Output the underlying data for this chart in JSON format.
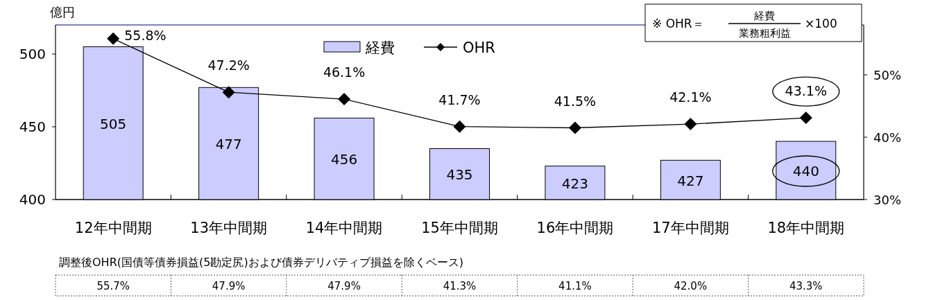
{
  "chart_data": {
    "type": "bar",
    "ylabel": "億円",
    "categories": [
      "12年中間期",
      "13年中間期",
      "14年中間期",
      "15年中間期",
      "16年中間期",
      "17年中間期",
      "18年中間期"
    ],
    "series": [
      {
        "name": "経費",
        "color": "#ccccff",
        "values": [
          505,
          477,
          456,
          435,
          423,
          427,
          440
        ]
      },
      {
        "name": "OHR",
        "type": "line",
        "axis": "y2",
        "color": "#000000",
        "marker": "diamond",
        "value_labels": [
          "55.8%",
          "47.2%",
          "46.1%",
          "41.7%",
          "41.5%",
          "42.1%",
          "43.1%"
        ],
        "values": [
          55.8,
          47.2,
          46.1,
          41.7,
          41.5,
          42.1,
          43.1
        ]
      }
    ],
    "ylim": [
      400,
      520
    ],
    "yticks": [
      400,
      450,
      500
    ],
    "y2lim": [
      30,
      58
    ],
    "y2ticks": [
      {
        "value": 30,
        "label": "30%"
      },
      {
        "value": 40,
        "label": "40%"
      },
      {
        "value": 50,
        "label": "50%"
      }
    ],
    "data_labels": true,
    "grid": false,
    "legend": "top",
    "annotations": [
      "※ OHR＝",
      "経費",
      "業務粗利益",
      "×100",
      "調整後OHR(国債等債券損益(5勘定尻)および債券デリバティブ損益を除くベース)",
      "55.7%",
      "47.9%",
      "47.9%",
      "41.3%",
      "41.1%",
      "42.0%",
      "43.3%"
    ]
  }
}
